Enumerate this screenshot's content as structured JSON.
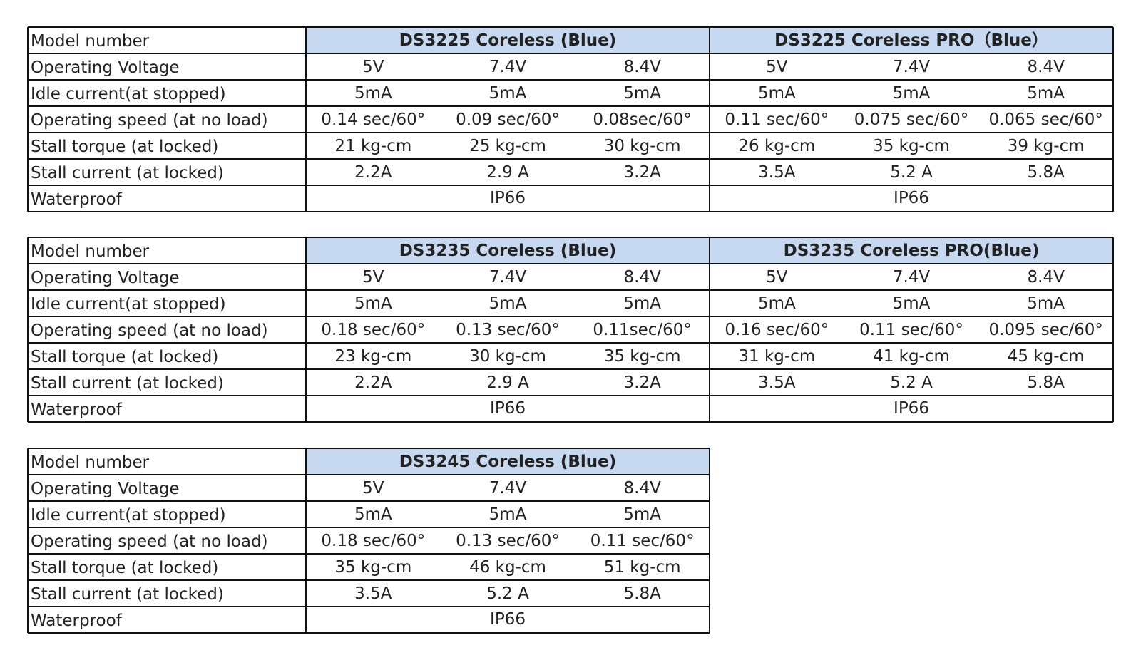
{
  "tables": [
    {
      "labels": [
        "Model number",
        "Operating Voltage",
        "Idle current(at stopped)",
        "Operating speed (at no load)",
        "Stall torque (at locked)",
        "Stall current (at locked)",
        "Waterproof"
      ],
      "models": [
        {
          "name": "DS3225 Coreless (Blue)",
          "rows": [
            [
              "5V",
              "7.4V",
              "8.4V"
            ],
            [
              "5mA",
              "5mA",
              "5mA"
            ],
            [
              "0.14 sec/60°",
              "0.09 sec/60°",
              "0.08sec/60°"
            ],
            [
              "21 kg-cm",
              "25 kg-cm",
              "30 kg-cm"
            ],
            [
              "2.2A",
              "2.9 A",
              "3.2A"
            ]
          ],
          "waterproof": "IP66"
        },
        {
          "name": "DS3225  Coreless PRO（Blue）",
          "rows": [
            [
              "5V",
              "7.4V",
              "8.4V"
            ],
            [
              "5mA",
              "5mA",
              "5mA"
            ],
            [
              "0.11 sec/60°",
              "0.075 sec/60°",
              "0.065 sec/60°"
            ],
            [
              "26 kg-cm",
              "35 kg-cm",
              "39 kg-cm"
            ],
            [
              "3.5A",
              "5.2 A",
              "5.8A"
            ]
          ],
          "waterproof": "IP66"
        }
      ]
    },
    {
      "labels": [
        "Model number",
        "Operating Voltage",
        "Idle current(at stopped)",
        "Operating speed (at no load)",
        "Stall torque (at locked)",
        "Stall current (at locked)",
        "Waterproof"
      ],
      "models": [
        {
          "name": "DS3235 Coreless (Blue)",
          "rows": [
            [
              "5V",
              "7.4V",
              "8.4V"
            ],
            [
              "5mA",
              "5mA",
              "5mA"
            ],
            [
              "0.18 sec/60°",
              "0.13 sec/60°",
              "0.11sec/60°"
            ],
            [
              "23 kg-cm",
              "30 kg-cm",
              "35 kg-cm"
            ],
            [
              "2.2A",
              "2.9 A",
              "3.2A"
            ]
          ],
          "waterproof": "IP66"
        },
        {
          "name": "DS3235  Coreless PRO(Blue)",
          "rows": [
            [
              "5V",
              "7.4V",
              "8.4V"
            ],
            [
              "5mA",
              "5mA",
              "5mA"
            ],
            [
              "0.16 sec/60°",
              "0.11 sec/60°",
              "0.095 sec/60°"
            ],
            [
              "31 kg-cm",
              "41 kg-cm",
              "45 kg-cm"
            ],
            [
              "3.5A",
              "5.2 A",
              "5.8A"
            ]
          ],
          "waterproof": "IP66"
        }
      ]
    },
    {
      "labels": [
        "Model number",
        "Operating Voltage",
        "Idle current(at stopped)",
        "Operating speed (at no load)",
        "Stall torque (at locked)",
        "Stall current (at locked)",
        "Waterproof"
      ],
      "models": [
        {
          "name": "DS3245 Coreless (Blue)",
          "rows": [
            [
              "5V",
              "7.4V",
              "8.4V"
            ],
            [
              "5mA",
              "5mA",
              "5mA"
            ],
            [
              "0.18 sec/60°",
              "0.13 sec/60°",
              "0.11 sec/60°"
            ],
            [
              "35 kg-cm",
              "46 kg-cm",
              "51 kg-cm"
            ],
            [
              "3.5A",
              "5.2 A",
              "5.8A"
            ]
          ],
          "waterproof": "IP66"
        }
      ]
    }
  ]
}
